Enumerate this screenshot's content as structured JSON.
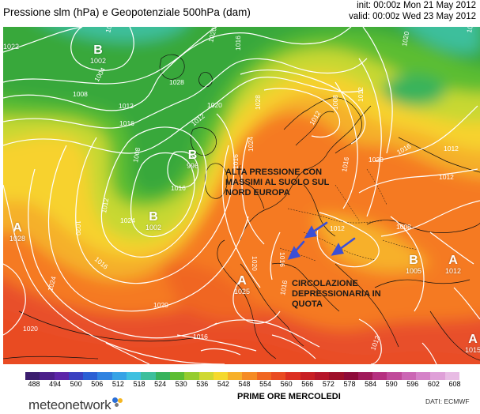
{
  "header": {
    "title": "Pressione slm (hPa) e Geopotenziale 500hPa (dam)",
    "init": "init: 00:00z Mon 21 May 2012",
    "valid": "valid: 00:00z Wed 23 May 2012"
  },
  "systems": [
    {
      "letter": "A",
      "value": "1022"
    },
    {
      "letter": "B",
      "value": "1002"
    },
    {
      "letter": "B",
      "value": "996"
    },
    {
      "letter": "B",
      "value": "1002"
    },
    {
      "letter": "A",
      "value": "1028"
    },
    {
      "letter": "A",
      "value": "1025"
    },
    {
      "letter": "B",
      "value": "1005"
    },
    {
      "letter": "A",
      "value": "1012"
    },
    {
      "letter": "A",
      "value": "1015"
    }
  ],
  "isobar_labels": [
    "1004",
    "1008",
    "1012",
    "1016",
    "1020",
    "1024",
    "1028",
    "1016",
    "1012",
    "1008",
    "1012",
    "1016",
    "1020",
    "1020",
    "1016",
    "1016",
    "1024",
    "1028",
    "1016",
    "1012",
    "1008",
    "1012",
    "1016",
    "1020",
    "1016",
    "1012",
    "1012",
    "1020",
    "1016",
    "1008",
    "1012",
    "1016",
    "1012",
    "1020",
    "1024",
    "1020",
    "1016",
    "1016",
    "1020"
  ],
  "annotations": {
    "high_pressure": [
      "ALTA PRESSIONE CON",
      "MASSIMI AL SUOLO SUL",
      "NORD EUROPA"
    ],
    "low_upper": [
      "CIRCOLAZIONE",
      "DEPRESSIONARIA IN",
      "QUOTA"
    ]
  },
  "colorbar": {
    "ticks": [
      "488",
      "494",
      "500",
      "506",
      "512",
      "518",
      "524",
      "530",
      "536",
      "542",
      "548",
      "554",
      "560",
      "566",
      "572",
      "578",
      "584",
      "590",
      "596",
      "602",
      "608"
    ],
    "colors": [
      "#3b1d6e",
      "#4b1f8a",
      "#5c25a8",
      "#3a40c0",
      "#2b5fd4",
      "#2f82e0",
      "#36a3e6",
      "#3fc0e0",
      "#3dbf9c",
      "#37b35c",
      "#5cbd32",
      "#95cc2e",
      "#cfd832",
      "#f5d92e",
      "#f7b02a",
      "#f58b24",
      "#f06622",
      "#e94b22",
      "#dc2f22",
      "#c81e24",
      "#b5152a",
      "#9e0f2a",
      "#8e0b3a",
      "#a01a5a",
      "#b53080",
      "#c04a9a",
      "#cb66b4",
      "#d582c8",
      "#dfa0d8",
      "#e8bce4"
    ],
    "label": "PRIME ORE MERCOLEDI"
  },
  "source": "DATI:  ECMWF",
  "logo": "meteonetwork"
}
